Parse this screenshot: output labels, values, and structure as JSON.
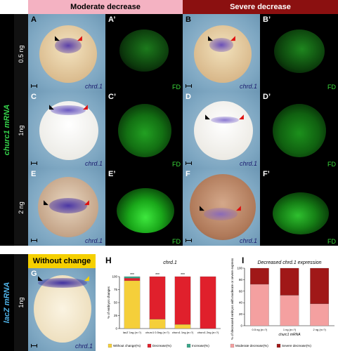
{
  "headers": {
    "moderate": "Moderate decrease",
    "severe": "Severe decrease",
    "without": "Without change"
  },
  "side_labels": {
    "top": "churc1 mRNA",
    "bottom": "lacZ mRNA"
  },
  "doses": [
    "0.5 ng",
    "1ng",
    "2 ng",
    "1ng"
  ],
  "panels": {
    "A": "A",
    "A2": "A’",
    "B": "B",
    "B2": "B’",
    "C": "C",
    "C2": "C’",
    "D": "D",
    "D2": "D’",
    "E": "E",
    "E2": "E’",
    "F": "F",
    "F2": "F’",
    "G": "G",
    "H": "H",
    "I": "I"
  },
  "gene_label": "chrd.1",
  "fd_label": "FD",
  "colors": {
    "moderate_header": "#f4b2c2",
    "severe_header": "#8b1010",
    "without_header": "#f5d000",
    "side_text_top": "#35d14a",
    "side_text_bottom": "#4fb3e8",
    "series_without": "#f5cf3a",
    "series_decrease": "#e0202c",
    "series_increase": "#3aa68a",
    "moderate_bar": "#f4a0a0",
    "severe_bar": "#a01818"
  },
  "chart_data": [
    {
      "panel": "H",
      "type": "bar",
      "stacked": true,
      "title": "chrd.1",
      "ylabel": "% of embryos changes",
      "ylim": [
        0,
        100
      ],
      "yticks": [
        0,
        25,
        50,
        75,
        100
      ],
      "categories": [
        "lacZ 1ng (n=?)",
        "churc1 0.5ng (n=?)",
        "churc1 1ng (n=?)",
        "churc1 2ng (n=?)"
      ],
      "significance": [
        "***",
        "***",
        "***",
        ""
      ],
      "series": [
        {
          "name": "Without change(%)",
          "values": [
            92,
            18,
            8,
            0
          ]
        },
        {
          "name": "Decrease(%)",
          "values": [
            5,
            82,
            92,
            100
          ]
        },
        {
          "name": "Increase(%)",
          "values": [
            3,
            0,
            0,
            0
          ]
        }
      ],
      "legend_position": "bottom"
    },
    {
      "panel": "I",
      "type": "bar",
      "stacked": true,
      "title": "Decreased chrd.1 expression",
      "ylabel": "% of decreased embryos with moderate or severe expression",
      "xlabel": "churc1 mRNA",
      "ylim": [
        0,
        100
      ],
      "yticks": [
        0,
        20,
        40,
        60,
        80,
        100
      ],
      "categories": [
        "0.5 ng (n=?)",
        "1 ng (n=?)",
        "2 ng (n=?)"
      ],
      "series": [
        {
          "name": "Moderate decrease(%)",
          "values": [
            72,
            53,
            38
          ]
        },
        {
          "name": "Severe decrease(%)",
          "values": [
            28,
            47,
            62
          ]
        }
      ],
      "legend_position": "bottom"
    }
  ]
}
